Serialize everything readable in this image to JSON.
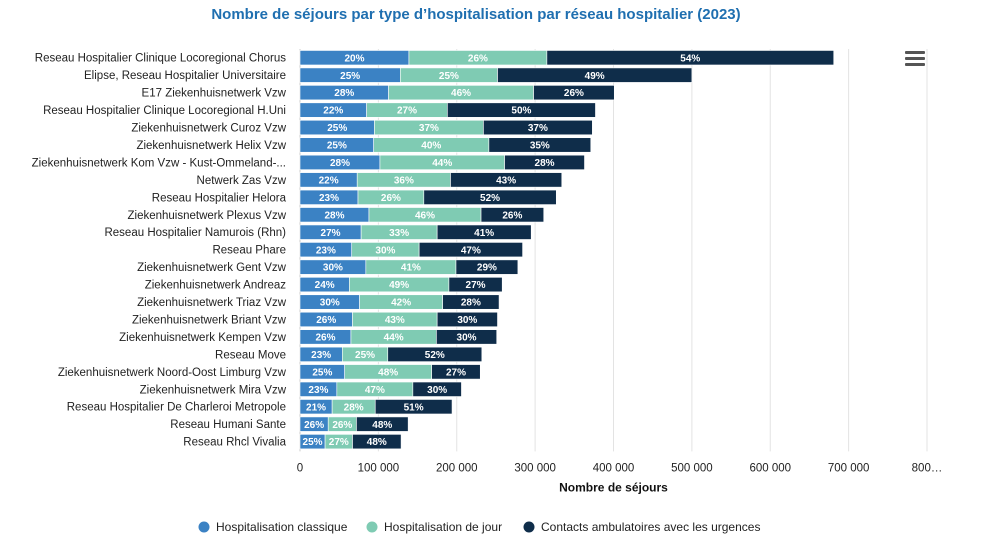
{
  "title": "Nombre de séjours par type d’hospitalisation par réseau hospitalier (2023)",
  "chart_data": {
    "type": "bar",
    "orientation": "horizontal",
    "stacked": true,
    "title": "Nombre de séjours par type d’hospitalisation par réseau hospitalier (2023)",
    "xlabel": "Nombre de séjours",
    "ylabel": "",
    "xlim": [
      0,
      800000
    ],
    "xticks": [
      "0",
      "100 000",
      "200 000",
      "300 000",
      "400 000",
      "500 000",
      "600 000",
      "700 000",
      "800…"
    ],
    "grid": true,
    "legend_position": "bottom",
    "categories": [
      "Reseau Hospitalier Clinique Locoregional Chorus",
      "Elipse, Reseau Hospitalier Universitaire",
      "E17 Ziekenhuisnetwerk Vzw",
      "Reseau Hospitalier Clinique Locoregional H.Uni",
      "Ziekenhuisnetwerk Curoz Vzw",
      "Ziekenhuisnetwerk Helix Vzw",
      "Ziekenhuisnetwerk Kom Vzw - Kust-Ommeland-...",
      "Netwerk Zas Vzw",
      "Reseau Hospitalier Helora",
      "Ziekenhuisnetwerk Plexus Vzw",
      "Reseau Hospitalier Namurois (Rhn)",
      "Reseau Phare",
      "Ziekenhuisnetwerk Gent Vzw",
      "Ziekenhuisnetwerk Andreaz",
      "Ziekenhuisnetwerk Triaz Vzw",
      "Ziekenhuisnetwerk Briant Vzw",
      "Ziekenhuisnetwerk Kempen Vzw",
      "Reseau Move",
      "Ziekenhuisnetwerk Noord-Oost Limburg Vzw",
      "Ziekenhuisnetwerk Mira Vzw",
      "Reseau Hospitalier De Charleroi Metropole",
      "Reseau Humani Sante",
      "Reseau Rhcl Vivalia"
    ],
    "series": [
      {
        "name": "Hospitalisation classique",
        "color": "#3b82c4",
        "values": [
          139000,
          128000,
          113000,
          85000,
          95000,
          94000,
          102000,
          73000,
          74000,
          88000,
          78000,
          66000,
          84000,
          63000,
          76000,
          67000,
          65000,
          54000,
          57000,
          47000,
          41000,
          36000,
          32000
        ],
        "labels": [
          "20%",
          "25%",
          "28%",
          "22%",
          "25%",
          "25%",
          "28%",
          "22%",
          "23%",
          "28%",
          "27%",
          "23%",
          "30%",
          "24%",
          "30%",
          "26%",
          "26%",
          "23%",
          "25%",
          "23%",
          "21%",
          "26%",
          "25%"
        ]
      },
      {
        "name": "Hospitalisation de jour",
        "color": "#7fcbb3",
        "values": [
          176000,
          124000,
          185000,
          103000,
          139000,
          147000,
          159000,
          119000,
          84000,
          143000,
          97000,
          86000,
          115000,
          127000,
          106000,
          108000,
          109000,
          58000,
          111000,
          97000,
          55000,
          36000,
          35000
        ],
        "labels": [
          "26%",
          "25%",
          "46%",
          "27%",
          "37%",
          "40%",
          "44%",
          "36%",
          "26%",
          "46%",
          "33%",
          "30%",
          "41%",
          "49%",
          "42%",
          "43%",
          "44%",
          "25%",
          "48%",
          "47%",
          "28%",
          "26%",
          "27%"
        ]
      },
      {
        "name": "Contacts ambulatoires avec les urgences",
        "color": "#0f2d4a",
        "values": [
          366000,
          248000,
          103000,
          189000,
          139000,
          130000,
          102000,
          142000,
          169000,
          80000,
          120000,
          132000,
          79000,
          68000,
          72000,
          77000,
          77000,
          120000,
          62000,
          62000,
          98000,
          66000,
          62000
        ],
        "labels": [
          "54%",
          "49%",
          "26%",
          "50%",
          "37%",
          "35%",
          "28%",
          "43%",
          "52%",
          "26%",
          "41%",
          "47%",
          "29%",
          "27%",
          "28%",
          "30%",
          "30%",
          "52%",
          "27%",
          "30%",
          "51%",
          "48%",
          "48%"
        ]
      }
    ]
  }
}
